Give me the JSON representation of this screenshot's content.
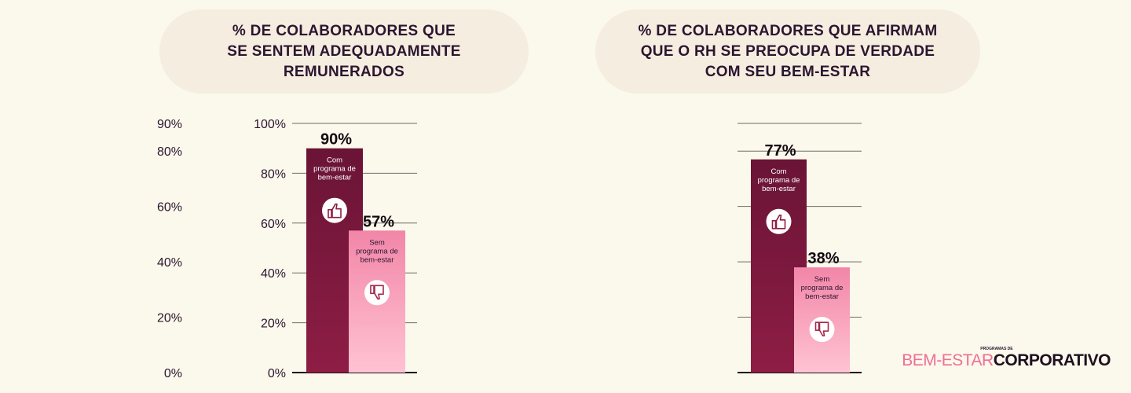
{
  "chart_data": [
    {
      "type": "bar",
      "title": "% DE COLABORADORES QUE\nSE SENTEM ADEQUADAMENTE\nREMUNERADOS",
      "ylim": [
        0,
        100
      ],
      "yticks": [
        "0%",
        "20%",
        "40%",
        "60%",
        "80%",
        "100%"
      ],
      "ytick_values": [
        0,
        20,
        40,
        60,
        80,
        100
      ],
      "grid": true,
      "series": [
        {
          "label": "Com\nprograma de\nbem-estar",
          "value": 90,
          "value_label": "90%",
          "icon": "thumbs-up-icon"
        },
        {
          "label": "Sem\nprograma de\nbem-estar",
          "value": 57,
          "value_label": "57%",
          "icon": "thumbs-down-icon"
        }
      ]
    },
    {
      "type": "bar",
      "title": "% DE COLABORADORES QUE AFIRMAM\nQUE O RH SE PREOCUPA DE VERDADE\nCOM SEU BEM-ESTAR",
      "ylim": [
        0,
        90
      ],
      "yticks": [
        "0%",
        "20%",
        "40%",
        "60%",
        "80%",
        "90%"
      ],
      "ytick_values": [
        0,
        20,
        40,
        60,
        80,
        90
      ],
      "grid": true,
      "series": [
        {
          "label": "Com\nprograma de\nbem-estar",
          "value": 77,
          "value_label": "77%",
          "icon": "thumbs-up-icon"
        },
        {
          "label": "Sem\nprograma de\nbem-estar",
          "value": 38,
          "value_label": "38%",
          "icon": "thumbs-down-icon"
        }
      ]
    }
  ],
  "colors": {
    "dark_bar_top": "#6a1436",
    "dark_bar_bottom": "#8e1d44",
    "light_bar_top": "#f286a8",
    "light_bar_bottom": "#ffc3d3",
    "title_pill": "#f5eddf",
    "background": "#fbf8ec",
    "text": "#2b1530"
  },
  "brand": {
    "pre": "PROGRAMAS DE",
    "part1": "BEM-ESTAR",
    "part2": "CORPORATIVO"
  }
}
